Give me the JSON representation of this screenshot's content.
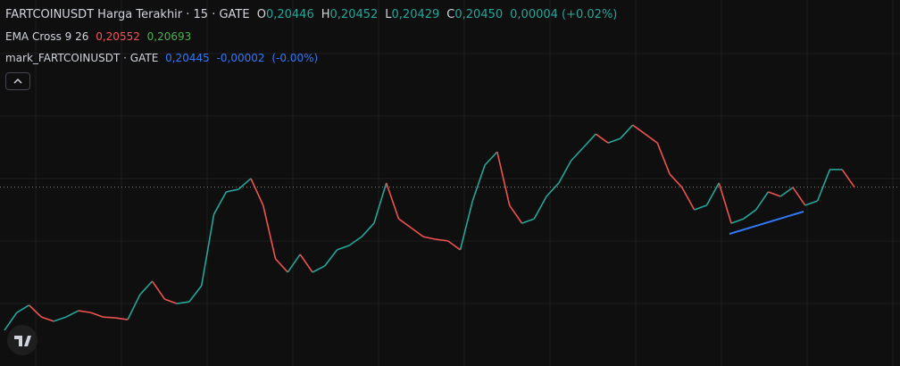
{
  "legend": {
    "symbol": "FARTCOINUSDT Harga Terakhir · 15 · GATE",
    "ohlc": [
      [
        "O",
        "0,20446"
      ],
      [
        "H",
        "0,20452"
      ],
      [
        "L",
        "0,20429"
      ],
      [
        "C",
        "0,20450"
      ],
      [
        "",
        "0,00004 (+0.02%)"
      ]
    ],
    "ema": {
      "name": "EMA Cross 9 26",
      "values": [
        "0,20552",
        "0,20693"
      ]
    },
    "mark": {
      "name": "mark_FARTCOINUSDT · GATE",
      "values": [
        "0,20445",
        "-0,00002",
        "(-0.00%)"
      ]
    }
  },
  "chart_data": {
    "type": "line",
    "color": "#26a69a",
    "down_color": "#ef5350",
    "ylim": [
      0.14,
      0.262
    ],
    "values": [
      0.1502,
      0.1569,
      0.1597,
      0.1552,
      0.1536,
      0.1552,
      0.1576,
      0.1569,
      0.1552,
      0.1549,
      0.1542,
      0.1637,
      0.1688,
      0.162,
      0.1603,
      0.161,
      0.1671,
      0.1942,
      0.2027,
      0.2037,
      0.2078,
      0.1976,
      0.1773,
      0.1722,
      0.179,
      0.1722,
      0.1746,
      0.1807,
      0.1824,
      0.1857,
      0.1908,
      0.2061,
      0.1925,
      0.1891,
      0.1857,
      0.1847,
      0.1841,
      0.1807,
      0.1993,
      0.2129,
      0.2179,
      0.1976,
      0.1908,
      0.1925,
      0.201,
      0.2061,
      0.2146,
      0.2196,
      0.2247,
      0.2213,
      0.223,
      0.2281,
      0.2247,
      0.2213,
      0.2095,
      0.2044,
      0.1959,
      0.1976,
      0.2061,
      0.1908,
      0.1925,
      0.1959,
      0.2027,
      0.201,
      0.2044,
      0.1976,
      0.1993,
      0.2112,
      0.2112,
      0.2045
    ]
  }
}
